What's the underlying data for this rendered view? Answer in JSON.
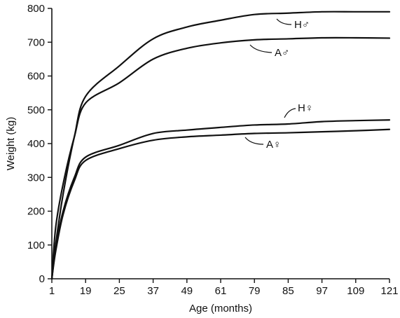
{
  "chart_data": {
    "type": "line",
    "xlabel": "Age (months)",
    "ylabel": "Weight (kg)",
    "xlim": [
      1,
      121
    ],
    "ylim": [
      0,
      800
    ],
    "xticks": [
      1,
      19,
      25,
      37,
      49,
      61,
      79,
      85,
      97,
      109,
      121
    ],
    "yticks": [
      0,
      100,
      200,
      300,
      400,
      500,
      600,
      700,
      800
    ],
    "grid": false,
    "legend": "none",
    "series": [
      {
        "name": "H♂",
        "x": [
          1,
          3,
          7,
          13,
          19,
          25,
          37,
          49,
          61,
          79,
          85,
          97,
          109,
          121
        ],
        "y": [
          0,
          100,
          250,
          420,
          540,
          630,
          710,
          745,
          765,
          782,
          786,
          790,
          790,
          790
        ]
      },
      {
        "name": "A♂",
        "x": [
          1,
          3,
          7,
          13,
          19,
          25,
          37,
          49,
          61,
          79,
          85,
          97,
          109,
          121
        ],
        "y": [
          0,
          150,
          280,
          420,
          520,
          580,
          650,
          682,
          698,
          707,
          710,
          713,
          713,
          712
        ]
      },
      {
        "name": "H♀",
        "x": [
          1,
          3,
          7,
          13,
          19,
          25,
          37,
          49,
          61,
          79,
          85,
          97,
          109,
          121
        ],
        "y": [
          0,
          90,
          200,
          300,
          360,
          395,
          430,
          440,
          448,
          455,
          458,
          465,
          468,
          470
        ]
      },
      {
        "name": "A♀",
        "x": [
          1,
          3,
          7,
          13,
          19,
          25,
          37,
          49,
          61,
          79,
          85,
          97,
          109,
          121
        ],
        "y": [
          0,
          80,
          190,
          290,
          350,
          385,
          410,
          420,
          425,
          430,
          432,
          435,
          438,
          442
        ]
      }
    ]
  }
}
